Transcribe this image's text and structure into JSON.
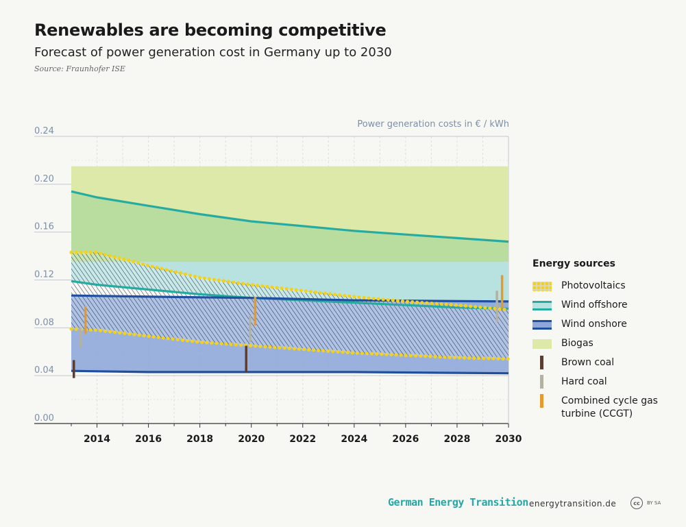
{
  "header": {
    "title": "Renewables are becoming competitive",
    "subtitle": "Forecast of power generation cost in Germany up to 2030",
    "source": "Source: Fraunhofer ISE"
  },
  "footer": {
    "brand": "German Energy Transition",
    "url": "energytransition.de",
    "cc_icon": "cc",
    "cc_text": "BY SA"
  },
  "colors": {
    "biogas": "#dde9a8",
    "wind_offshore_line": "#26aba0",
    "wind_offshore_fill": "#b8e2e0",
    "wind_onshore_line": "#1f4f9e",
    "wind_onshore_fill": "#8ea9d9",
    "pv_dots": "#f5d21a",
    "brown_coal": "#5a3e32",
    "hard_coal": "#b3b1a4",
    "ccgt": "#e59a2f",
    "axis_text": "#7d8fa8"
  },
  "chart_data": {
    "type": "area",
    "ylabel": "Power generation costs in € / kWh",
    "xlim": [
      2013,
      2030
    ],
    "ylim": [
      0,
      0.24
    ],
    "yticks": [
      0.0,
      0.04,
      0.08,
      0.12,
      0.16,
      0.2,
      0.24
    ],
    "ytick_labels": [
      "0.00",
      "0.04",
      "0.08",
      "0.12",
      "0.16",
      "0.20",
      "0.24"
    ],
    "xticks": [
      2014,
      2016,
      2018,
      2020,
      2022,
      2024,
      2026,
      2028,
      2030
    ],
    "xtick_labels": [
      "2014",
      "2016",
      "2018",
      "2020",
      "2022",
      "2024",
      "2026",
      "2028",
      "2030"
    ],
    "grid": true,
    "legend": {
      "title": "Energy sources",
      "position": "right",
      "items": [
        {
          "key": "pv",
          "label": "Photovoltaics"
        },
        {
          "key": "wind_offshore",
          "label": "Wind offshore"
        },
        {
          "key": "wind_onshore",
          "label": "Wind onshore"
        },
        {
          "key": "biogas",
          "label": "Biogas"
        },
        {
          "key": "brown_coal",
          "label": "Brown coal"
        },
        {
          "key": "hard_coal",
          "label": "Hard coal"
        },
        {
          "key": "ccgt",
          "label": "Combined cycle gas turbine (CCGT)"
        }
      ]
    },
    "bands": [
      {
        "key": "biogas",
        "x": [
          2013,
          2030
        ],
        "low": [
          0.135,
          0.135
        ],
        "high": [
          0.215,
          0.215
        ]
      },
      {
        "key": "wind_offshore",
        "x": [
          2013,
          2014,
          2016,
          2018,
          2020,
          2022,
          2024,
          2026,
          2028,
          2030
        ],
        "low": [
          0.119,
          0.116,
          0.112,
          0.108,
          0.105,
          0.103,
          0.101,
          0.099,
          0.097,
          0.096
        ],
        "high": [
          0.194,
          0.189,
          0.182,
          0.175,
          0.169,
          0.165,
          0.161,
          0.158,
          0.155,
          0.152
        ],
        "fill_high": 0.135
      },
      {
        "key": "wind_onshore",
        "x": [
          2013,
          2016,
          2020,
          2024,
          2030
        ],
        "low": [
          0.044,
          0.043,
          0.043,
          0.043,
          0.042
        ],
        "high": [
          0.107,
          0.106,
          0.105,
          0.103,
          0.102
        ]
      },
      {
        "key": "pv",
        "x": [
          2013,
          2014,
          2016,
          2018,
          2020,
          2022,
          2024,
          2026,
          2028,
          2030
        ],
        "low": [
          0.079,
          0.078,
          0.073,
          0.068,
          0.065,
          0.062,
          0.059,
          0.057,
          0.055,
          0.054
        ],
        "high": [
          0.143,
          0.143,
          0.132,
          0.122,
          0.116,
          0.111,
          0.106,
          0.102,
          0.099,
          0.095
        ]
      }
    ],
    "ranges": [
      {
        "key": "brown_coal",
        "x": 2013.1,
        "low": 0.038,
        "high": 0.053
      },
      {
        "key": "hard_coal",
        "x": 2013.35,
        "low": 0.063,
        "high": 0.08
      },
      {
        "key": "ccgt",
        "x": 2013.55,
        "low": 0.075,
        "high": 0.098
      },
      {
        "key": "brown_coal",
        "x": 2019.8,
        "low": 0.043,
        "high": 0.065
      },
      {
        "key": "hard_coal",
        "x": 2019.95,
        "low": 0.068,
        "high": 0.09
      },
      {
        "key": "ccgt",
        "x": 2020.15,
        "low": 0.082,
        "high": 0.106
      },
      {
        "key": "hard_coal",
        "x": 2029.55,
        "low": 0.085,
        "high": 0.111
      },
      {
        "key": "ccgt",
        "x": 2029.75,
        "low": 0.096,
        "high": 0.124
      }
    ]
  }
}
